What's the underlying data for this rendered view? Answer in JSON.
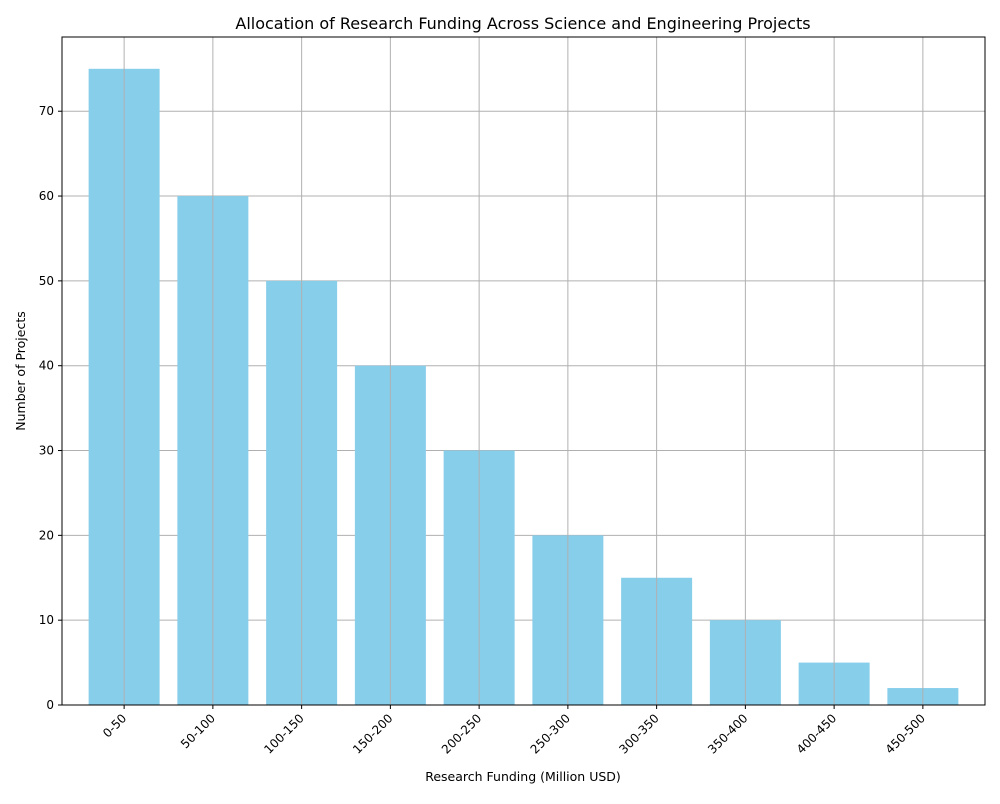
{
  "chart_data": {
    "type": "bar",
    "title": "Allocation of Research Funding Across Science and Engineering Projects",
    "xlabel": "Research Funding (Million USD)",
    "ylabel": "Number of Projects",
    "categories": [
      "0-50",
      "50-100",
      "100-150",
      "150-200",
      "200-250",
      "250-300",
      "300-350",
      "350-400",
      "400-450",
      "450-500"
    ],
    "values": [
      75,
      60,
      50,
      40,
      30,
      20,
      15,
      10,
      5,
      2
    ],
    "ylim": [
      0,
      78.75
    ],
    "yticks": [
      0,
      10,
      20,
      30,
      40,
      50,
      60,
      70
    ],
    "grid": true,
    "bar_color": "#87ceeb",
    "grid_color": "#b0b0b0"
  }
}
